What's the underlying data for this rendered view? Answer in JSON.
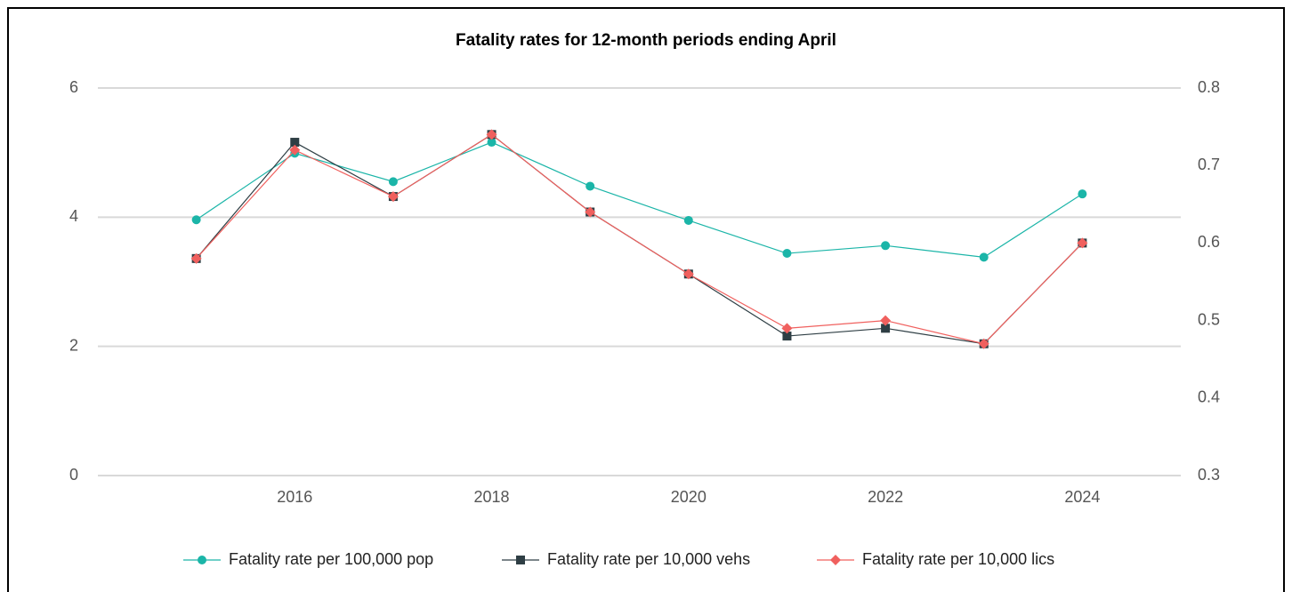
{
  "chart_data": {
    "type": "line",
    "title": "Fatality rates for 12-month periods ending April",
    "x": [
      2015,
      2016,
      2017,
      2018,
      2019,
      2020,
      2021,
      2022,
      2023,
      2024
    ],
    "xlim": [
      2014,
      2025
    ],
    "xticks": [
      2016,
      2018,
      2020,
      2022,
      2024
    ],
    "ylim": [
      0,
      6
    ],
    "yticks": [
      0,
      2,
      4,
      6
    ],
    "y2lim": [
      0.3,
      0.8
    ],
    "y2ticks": [
      0.3,
      0.4,
      0.5,
      0.6,
      0.7,
      0.8
    ],
    "grid": true,
    "legend": "bottom",
    "series": [
      {
        "name": "Fatality rate per 100,000 pop",
        "color": "#1bb5a8",
        "marker": "circle",
        "values": [
          3.96,
          4.99,
          4.55,
          5.16,
          4.48,
          3.95,
          3.44,
          3.56,
          3.38,
          4.36
        ]
      },
      {
        "name": "Fatality rate per 10,000 vehs",
        "color": "#2e3e44",
        "marker": "square",
        "axis": "y2",
        "values": [
          0.58,
          0.73,
          0.66,
          0.74,
          0.64,
          0.56,
          0.48,
          0.49,
          0.47,
          0.6
        ]
      },
      {
        "name": "Fatality rate per 10,000 lics",
        "color": "#f0605e",
        "marker": "diamond",
        "axis": "y2",
        "values": [
          0.58,
          0.72,
          0.66,
          0.74,
          0.64,
          0.56,
          0.49,
          0.5,
          0.47,
          0.6
        ]
      }
    ]
  }
}
